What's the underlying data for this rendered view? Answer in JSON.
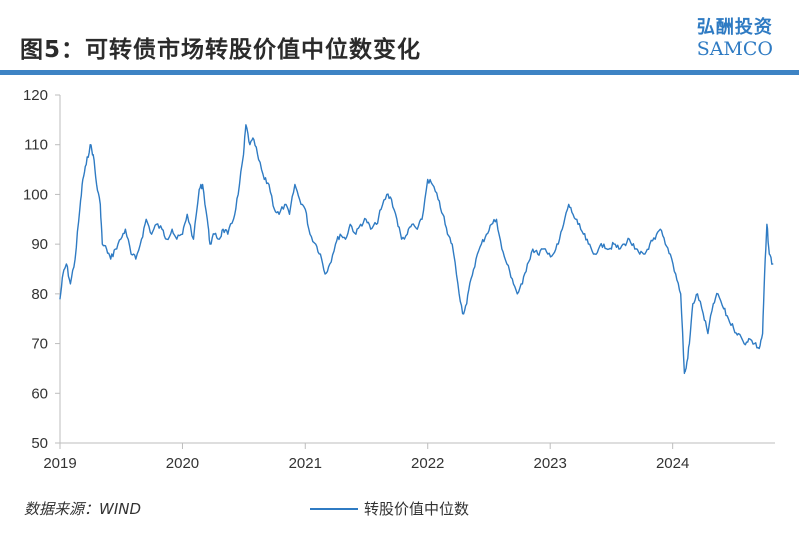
{
  "header": {
    "title": "图5：可转债市场转股价值中位数变化",
    "brand_cn": "弘酬投资",
    "brand_en": "SAMCO"
  },
  "footer": {
    "source": "数据来源：WIND"
  },
  "colors": {
    "accent": "#2f7bc3",
    "rule": "#3d83c4",
    "axis": "#bdbdbd"
  },
  "chart_data": {
    "type": "line",
    "title": "",
    "xlabel": "",
    "ylabel": "",
    "ylim": [
      50,
      120
    ],
    "yticks": [
      50,
      60,
      70,
      80,
      90,
      100,
      110,
      120
    ],
    "xlim": [
      "2019-01-01",
      "2024-11-01"
    ],
    "xticks": [
      "2019",
      "2020",
      "2021",
      "2022",
      "2023",
      "2024"
    ],
    "grid": false,
    "legend_position": "bottom",
    "series": [
      {
        "name": "转股价值中位数",
        "x": [
          "2019-01-01",
          "2019-01-10",
          "2019-01-20",
          "2019-02-01",
          "2019-02-15",
          "2019-03-01",
          "2019-03-10",
          "2019-03-20",
          "2019-04-01",
          "2019-04-10",
          "2019-04-20",
          "2019-05-01",
          "2019-05-07",
          "2019-05-20",
          "2019-06-01",
          "2019-06-15",
          "2019-07-01",
          "2019-07-15",
          "2019-08-01",
          "2019-08-15",
          "2019-09-01",
          "2019-09-15",
          "2019-10-01",
          "2019-10-15",
          "2019-11-01",
          "2019-11-15",
          "2019-12-01",
          "2019-12-15",
          "2020-01-01",
          "2020-01-15",
          "2020-02-03",
          "2020-02-20",
          "2020-03-01",
          "2020-03-15",
          "2020-03-23",
          "2020-04-05",
          "2020-04-20",
          "2020-05-01",
          "2020-05-15",
          "2020-06-01",
          "2020-06-15",
          "2020-07-01",
          "2020-07-08",
          "2020-07-20",
          "2020-08-01",
          "2020-08-15",
          "2020-09-01",
          "2020-09-15",
          "2020-10-01",
          "2020-10-15",
          "2020-11-01",
          "2020-11-15",
          "2020-12-01",
          "2020-12-15",
          "2021-01-01",
          "2021-01-15",
          "2021-02-01",
          "2021-02-15",
          "2021-03-01",
          "2021-03-15",
          "2021-04-01",
          "2021-04-15",
          "2021-05-01",
          "2021-05-15",
          "2021-06-01",
          "2021-06-15",
          "2021-07-01",
          "2021-07-15",
          "2021-08-01",
          "2021-08-15",
          "2021-09-01",
          "2021-09-15",
          "2021-10-01",
          "2021-10-15",
          "2021-11-01",
          "2021-11-15",
          "2021-12-01",
          "2021-12-15",
          "2022-01-01",
          "2022-01-15",
          "2022-02-01",
          "2022-02-15",
          "2022-03-01",
          "2022-03-15",
          "2022-04-01",
          "2022-04-15",
          "2022-04-27",
          "2022-05-10",
          "2022-05-25",
          "2022-06-10",
          "2022-06-25",
          "2022-07-10",
          "2022-07-25",
          "2022-08-10",
          "2022-08-25",
          "2022-09-10",
          "2022-09-25",
          "2022-10-10",
          "2022-10-25",
          "2022-11-10",
          "2022-11-25",
          "2022-12-10",
          "2022-12-25",
          "2023-01-10",
          "2023-01-25",
          "2023-02-10",
          "2023-02-25",
          "2023-03-10",
          "2023-03-25",
          "2023-04-10",
          "2023-04-25",
          "2023-05-10",
          "2023-05-25",
          "2023-06-10",
          "2023-06-25",
          "2023-07-10",
          "2023-07-25",
          "2023-08-10",
          "2023-08-25",
          "2023-09-10",
          "2023-09-25",
          "2023-10-10",
          "2023-10-25",
          "2023-11-10",
          "2023-11-25",
          "2023-12-10",
          "2023-12-25",
          "2024-01-10",
          "2024-01-25",
          "2024-02-05",
          "2024-02-10",
          "2024-02-20",
          "2024-03-01",
          "2024-03-15",
          "2024-04-01",
          "2024-04-15",
          "2024-05-01",
          "2024-05-15",
          "2024-06-01",
          "2024-06-15",
          "2024-07-01",
          "2024-07-15",
          "2024-08-01",
          "2024-08-15",
          "2024-09-01",
          "2024-09-15",
          "2024-09-25",
          "2024-10-01",
          "2024-10-08",
          "2024-10-15",
          "2024-10-25"
        ],
        "y": [
          79,
          84,
          86,
          82,
          87,
          97,
          103,
          106,
          110,
          108,
          102,
          98,
          90,
          89,
          87,
          89,
          91,
          93,
          88,
          87,
          91,
          95,
          92,
          94,
          93,
          91,
          93,
          91,
          92,
          96,
          91,
          101,
          102,
          95,
          90,
          92,
          91,
          93,
          92,
          95,
          100,
          108,
          114,
          110,
          111,
          107,
          103,
          102,
          97,
          96,
          98,
          96,
          102,
          99,
          97,
          92,
          90,
          88,
          84,
          86,
          90,
          92,
          91,
          94,
          92,
          94,
          95,
          93,
          94,
          97,
          100,
          99,
          95,
          91,
          92,
          94,
          93,
          95,
          103,
          102,
          99,
          96,
          92,
          90,
          82,
          76,
          78,
          83,
          87,
          90,
          92,
          94,
          95,
          89,
          86,
          83,
          80,
          82,
          86,
          89,
          88,
          89,
          88,
          88,
          90,
          94,
          98,
          96,
          94,
          92,
          90,
          88,
          89,
          90,
          89,
          90,
          89,
          90,
          91,
          89,
          88,
          88,
          90,
          91,
          93,
          90,
          88,
          84,
          80,
          64,
          65,
          70,
          78,
          80,
          76,
          72,
          78,
          80,
          77,
          75,
          73,
          72,
          70,
          71,
          70,
          69,
          72,
          84,
          94,
          88,
          86
        ]
      }
    ]
  }
}
